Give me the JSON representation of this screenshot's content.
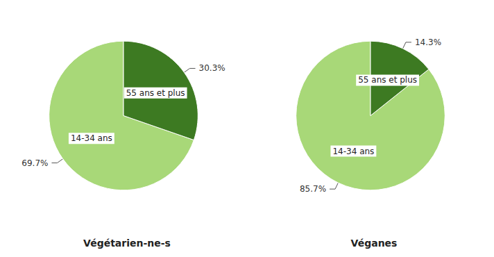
{
  "chart_data": [
    {
      "type": "pie",
      "title": "Végétarien-ne-s",
      "categories": [
        "14-34 ans",
        "55 ans et plus"
      ],
      "values": [
        69.7,
        30.3
      ],
      "value_labels": [
        "69.7%",
        "30.3%"
      ],
      "colors": [
        "#a8d878",
        "#3d7a22"
      ],
      "data_labels": true
    },
    {
      "type": "pie",
      "title": "Véganes",
      "categories": [
        "14-34 ans",
        "55 ans et plus"
      ],
      "values": [
        85.7,
        14.3
      ],
      "value_labels": [
        "85.7%",
        "14.3%"
      ],
      "colors": [
        "#a8d878",
        "#3d7a22"
      ],
      "data_labels": true
    }
  ]
}
